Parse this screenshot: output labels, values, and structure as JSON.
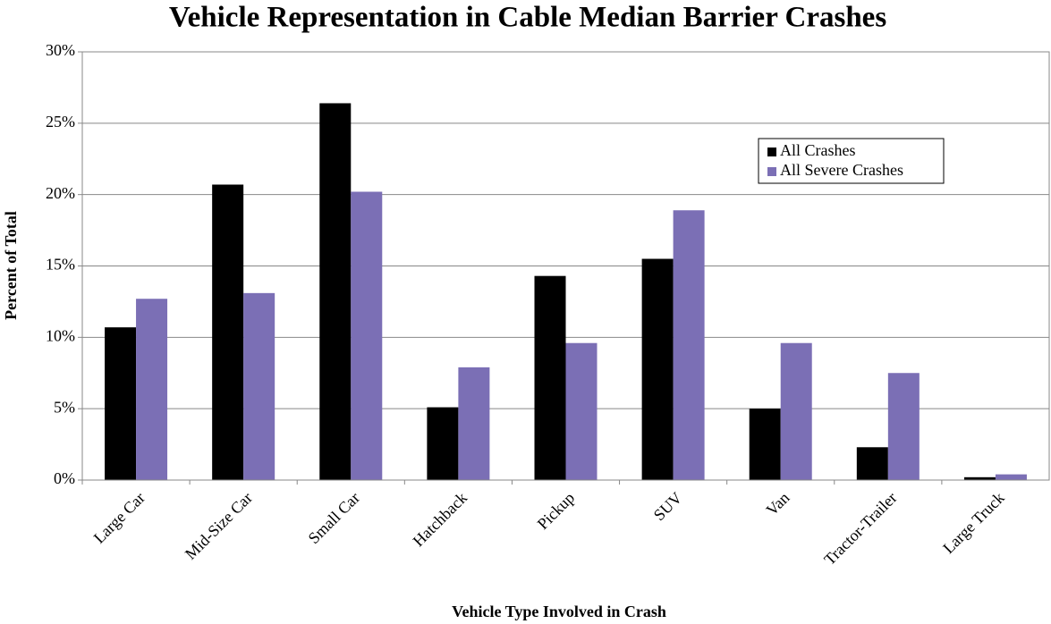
{
  "chart_data": {
    "type": "bar",
    "title": "Vehicle Representation in Cable Median Barrier Crashes",
    "x_label": "Vehicle Type Involved in Crash",
    "y_label": "Percent of Total",
    "categories": [
      "Large Car",
      "Mid-Size Car",
      "Small Car",
      "Hatchback",
      "Pickup",
      "SUV",
      "Van",
      "Tractor-Trailer",
      "Large Truck"
    ],
    "series": [
      {
        "name": "All Crashes",
        "color": "#000000",
        "values": [
          10.7,
          20.7,
          26.4,
          5.1,
          14.3,
          15.5,
          5.0,
          2.3,
          0.2
        ]
      },
      {
        "name": "All Severe Crashes",
        "color": "#7b6fb5",
        "values": [
          12.7,
          13.1,
          20.2,
          7.9,
          9.6,
          18.9,
          9.6,
          7.5,
          0.4
        ]
      }
    ],
    "ylim": [
      0,
      30
    ],
    "yticks": [
      {
        "value": 0,
        "label": "0%"
      },
      {
        "value": 5,
        "label": "5%"
      },
      {
        "value": 10,
        "label": "10%"
      },
      {
        "value": 15,
        "label": "15%"
      },
      {
        "value": 20,
        "label": "20%"
      },
      {
        "value": 25,
        "label": "25%"
      },
      {
        "value": 30,
        "label": "30%"
      }
    ],
    "grid": true,
    "legend": "upper right"
  }
}
